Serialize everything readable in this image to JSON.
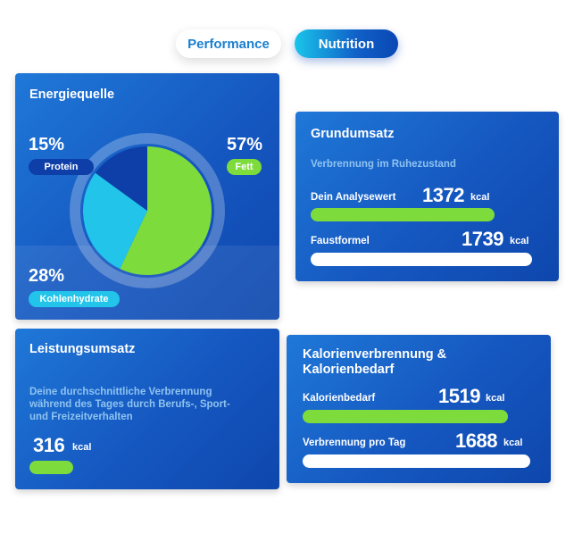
{
  "tabs": {
    "performance": "Performance",
    "nutrition": "Nutrition"
  },
  "energy": {
    "title": "Energiequelle",
    "protein": {
      "percent": "15%",
      "label": "Protein",
      "value": 15,
      "color": "#0e3fa8"
    },
    "fat": {
      "percent": "57%",
      "label": "Fett",
      "value": 57,
      "color": "#7ddc3b"
    },
    "carbs": {
      "percent": "28%",
      "label": "Kohlenhydrate",
      "value": 28,
      "color": "#22c4ea"
    }
  },
  "grundumsatz": {
    "title": "Grundumsatz",
    "subtitle": "Verbrennung im Ruhezustand",
    "row1": {
      "label": "Dein Analysewert",
      "value": "1372",
      "unit": "kcal"
    },
    "row2": {
      "label": "Faustformel",
      "value": "1739",
      "unit": "kcal"
    }
  },
  "leistung": {
    "title": "Leistungsumsatz",
    "line1": "Deine durchschnittliche Verbrennung",
    "line2": "während des Tages durch Berufs-, Sport-",
    "line3": "und Freizeitverhalten",
    "value": "316",
    "unit": "kcal"
  },
  "kalorien": {
    "title1": "Kalorienverbrennung &",
    "title2": "Kalorienbedarf",
    "row1": {
      "label": "Kalorienbedarf",
      "value": "1519",
      "unit": "kcal"
    },
    "row2": {
      "label": "Verbrennung pro Tag",
      "value": "1688",
      "unit": "kcal"
    }
  },
  "colors": {
    "accent_green": "#7ddc3b",
    "card_blue": "#1557c0",
    "cyan": "#22c4ea"
  }
}
